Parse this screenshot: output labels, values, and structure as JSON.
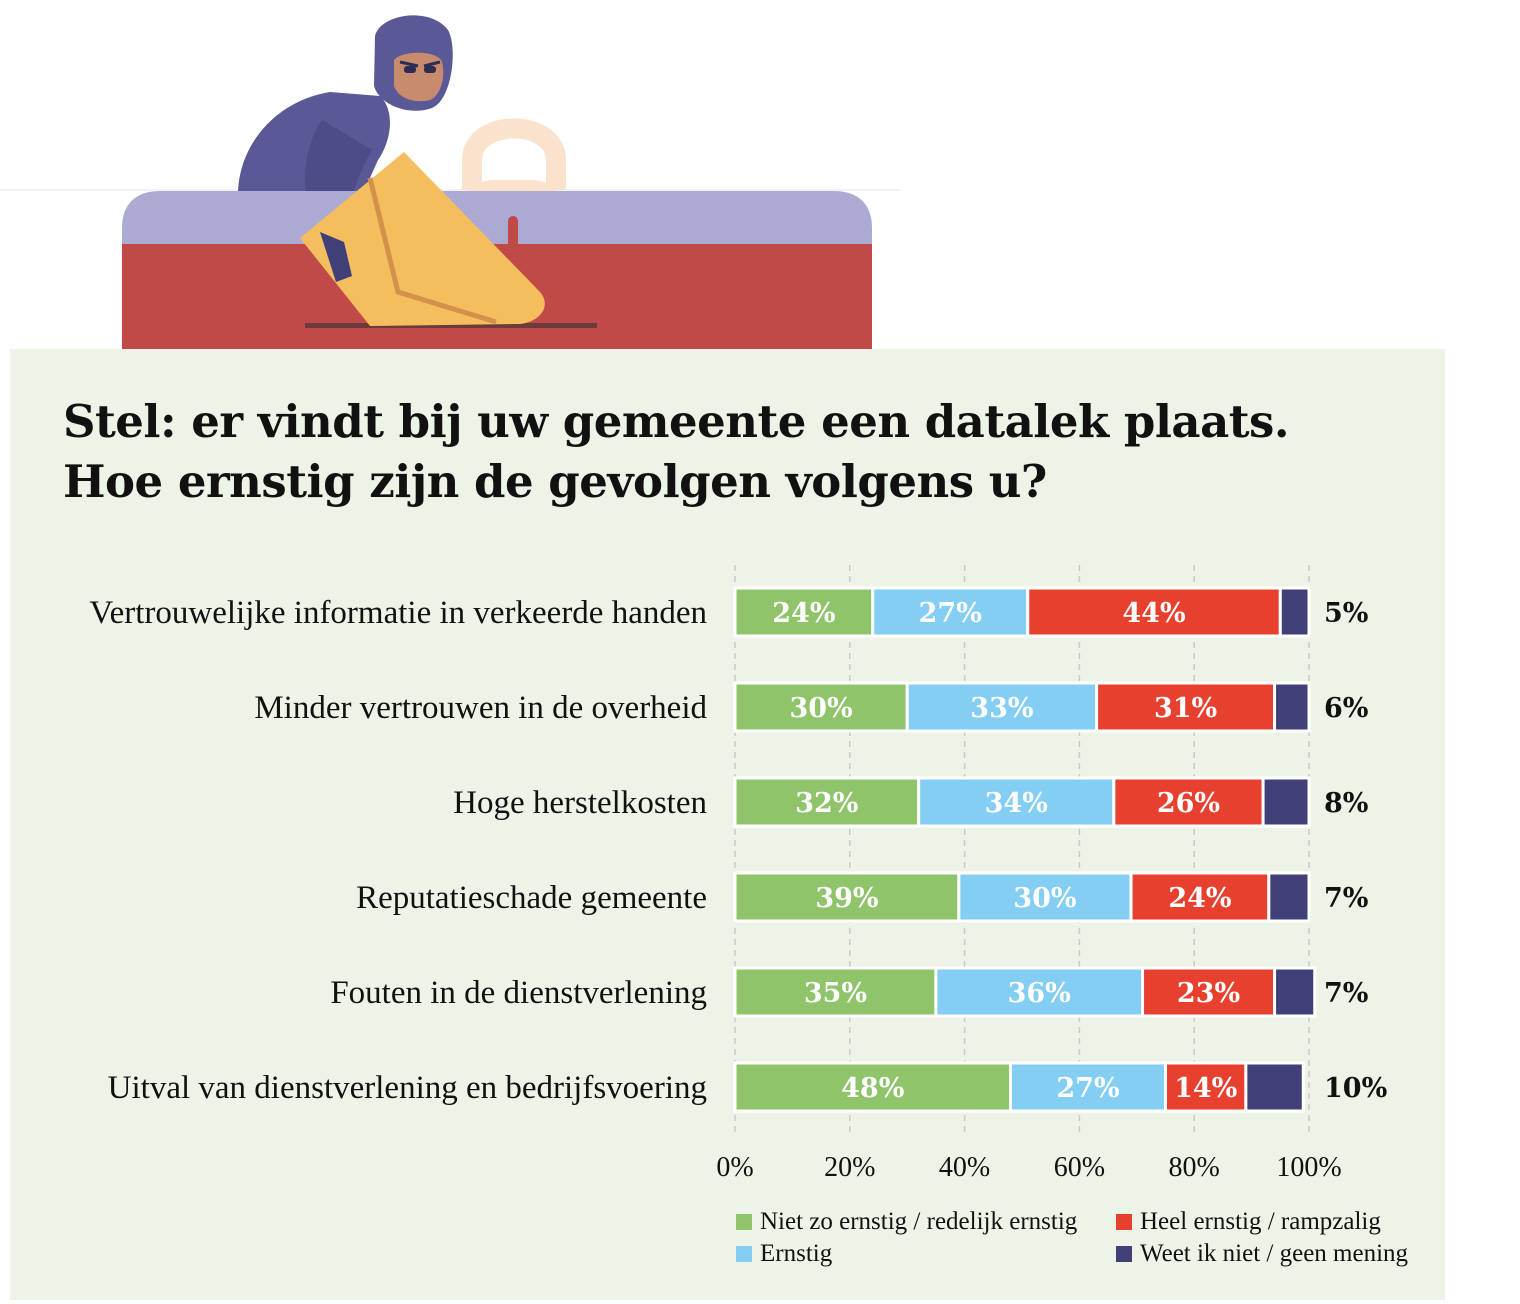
{
  "illustration": {
    "hacker-icon": "hacker-with-envelope-and-padlock-illustration",
    "colors": {
      "hood": "#5a5896",
      "skin": "#c98b6e",
      "envelope": "#f4be5e",
      "envelope_line": "#d4914a",
      "padlock": "#fae2cc",
      "keyhole": "#bf4a47",
      "card_top": "#abaad3",
      "card_bottom": "#bf4a47",
      "slot": "#6c3a3a"
    }
  },
  "title_lines": [
    "Stel: er vindt bij uw gemeente een datalek plaats.",
    "Hoe ernstig zijn de gevolgen volgens u?"
  ],
  "chart_data": {
    "type": "bar",
    "orientation": "horizontal",
    "stacked": true,
    "title": "Stel: er vindt bij uw gemeente een datalek plaats. Hoe ernstig zijn de gevolgen volgens u?",
    "categories": [
      "Vertrouwelijke informatie in verkeerde handen",
      "Minder vertrouwen in de overheid",
      "Hoge herstelkosten",
      "Reputatieschade gemeente",
      "Fouten in de dienstverlening",
      "Uitval van dienstverlening en bedrijfsvoering"
    ],
    "series": [
      {
        "name": "Niet zo ernstig / redelijk ernstig",
        "color": "#8fc46a",
        "values": [
          24,
          30,
          32,
          39,
          35,
          48
        ]
      },
      {
        "name": "Ernstig",
        "color": "#84cdf3",
        "values": [
          27,
          33,
          34,
          30,
          36,
          27
        ]
      },
      {
        "name": "Heel ernstig / rampzalig",
        "color": "#e8402e",
        "values": [
          44,
          31,
          26,
          24,
          23,
          14
        ]
      },
      {
        "name": "Weet ik niet / geen mening",
        "color": "#403f78",
        "values": [
          5,
          6,
          8,
          7,
          7,
          10
        ]
      }
    ],
    "value_suffix": "%",
    "xlim": [
      0,
      100
    ],
    "xticks": [
      0,
      20,
      40,
      60,
      80,
      100
    ],
    "xtick_labels": [
      "0%",
      "20%",
      "40%",
      "60%",
      "80%",
      "100%"
    ],
    "grid": true,
    "legend_position": "bottom-right"
  },
  "legend": [
    {
      "label": "Niet zo ernstig / redelijk ernstig",
      "color": "#8fc46a"
    },
    {
      "label": "Ernstig",
      "color": "#84cdf3"
    },
    {
      "label": "Heel ernstig / rampzalig",
      "color": "#e8402e"
    },
    {
      "label": "Weet ik niet / geen mening",
      "color": "#403f78"
    }
  ]
}
